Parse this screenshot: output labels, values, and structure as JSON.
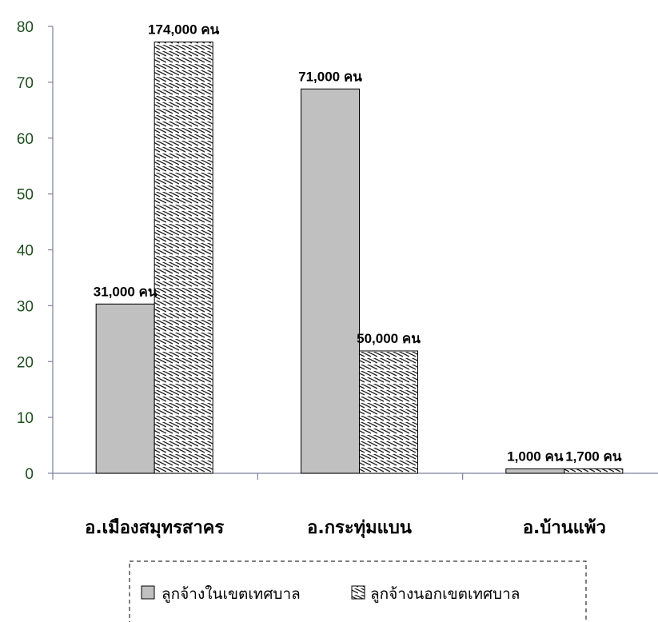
{
  "chart_data": {
    "type": "bar",
    "title": "",
    "xlabel": "",
    "ylabel": "",
    "ylim": [
      0,
      80
    ],
    "yticks": [
      0,
      10,
      20,
      30,
      40,
      50,
      60,
      70,
      80
    ],
    "categories": [
      "อ.เมืองสมุทรสาคร",
      "อ.กระทุ่มแบน",
      "อ.บ้านแพ้ว"
    ],
    "series": [
      {
        "name": "ลูกจ้างในเขตเทศบาล",
        "fill": "#c0c0c0",
        "pattern": "solid",
        "values": [
          30.3,
          68.8,
          0.8
        ],
        "labels": [
          "31,000 คน",
          "71,000 คน",
          "1,000 คน"
        ]
      },
      {
        "name": "ลูกจ้างนอกเขตเทศบาล",
        "fill": "#ffffff",
        "pattern": "hatch",
        "values": [
          77.2,
          21.9,
          0.8
        ],
        "labels": [
          "174,000 คน",
          "50,000 คน",
          "1,700 คน"
        ]
      }
    ],
    "legend_position": "bottom",
    "grid": false,
    "colors": {
      "axis": "#7f7f9f",
      "tick_text": "#1f4d1f",
      "bar_stroke": "#000000"
    }
  }
}
